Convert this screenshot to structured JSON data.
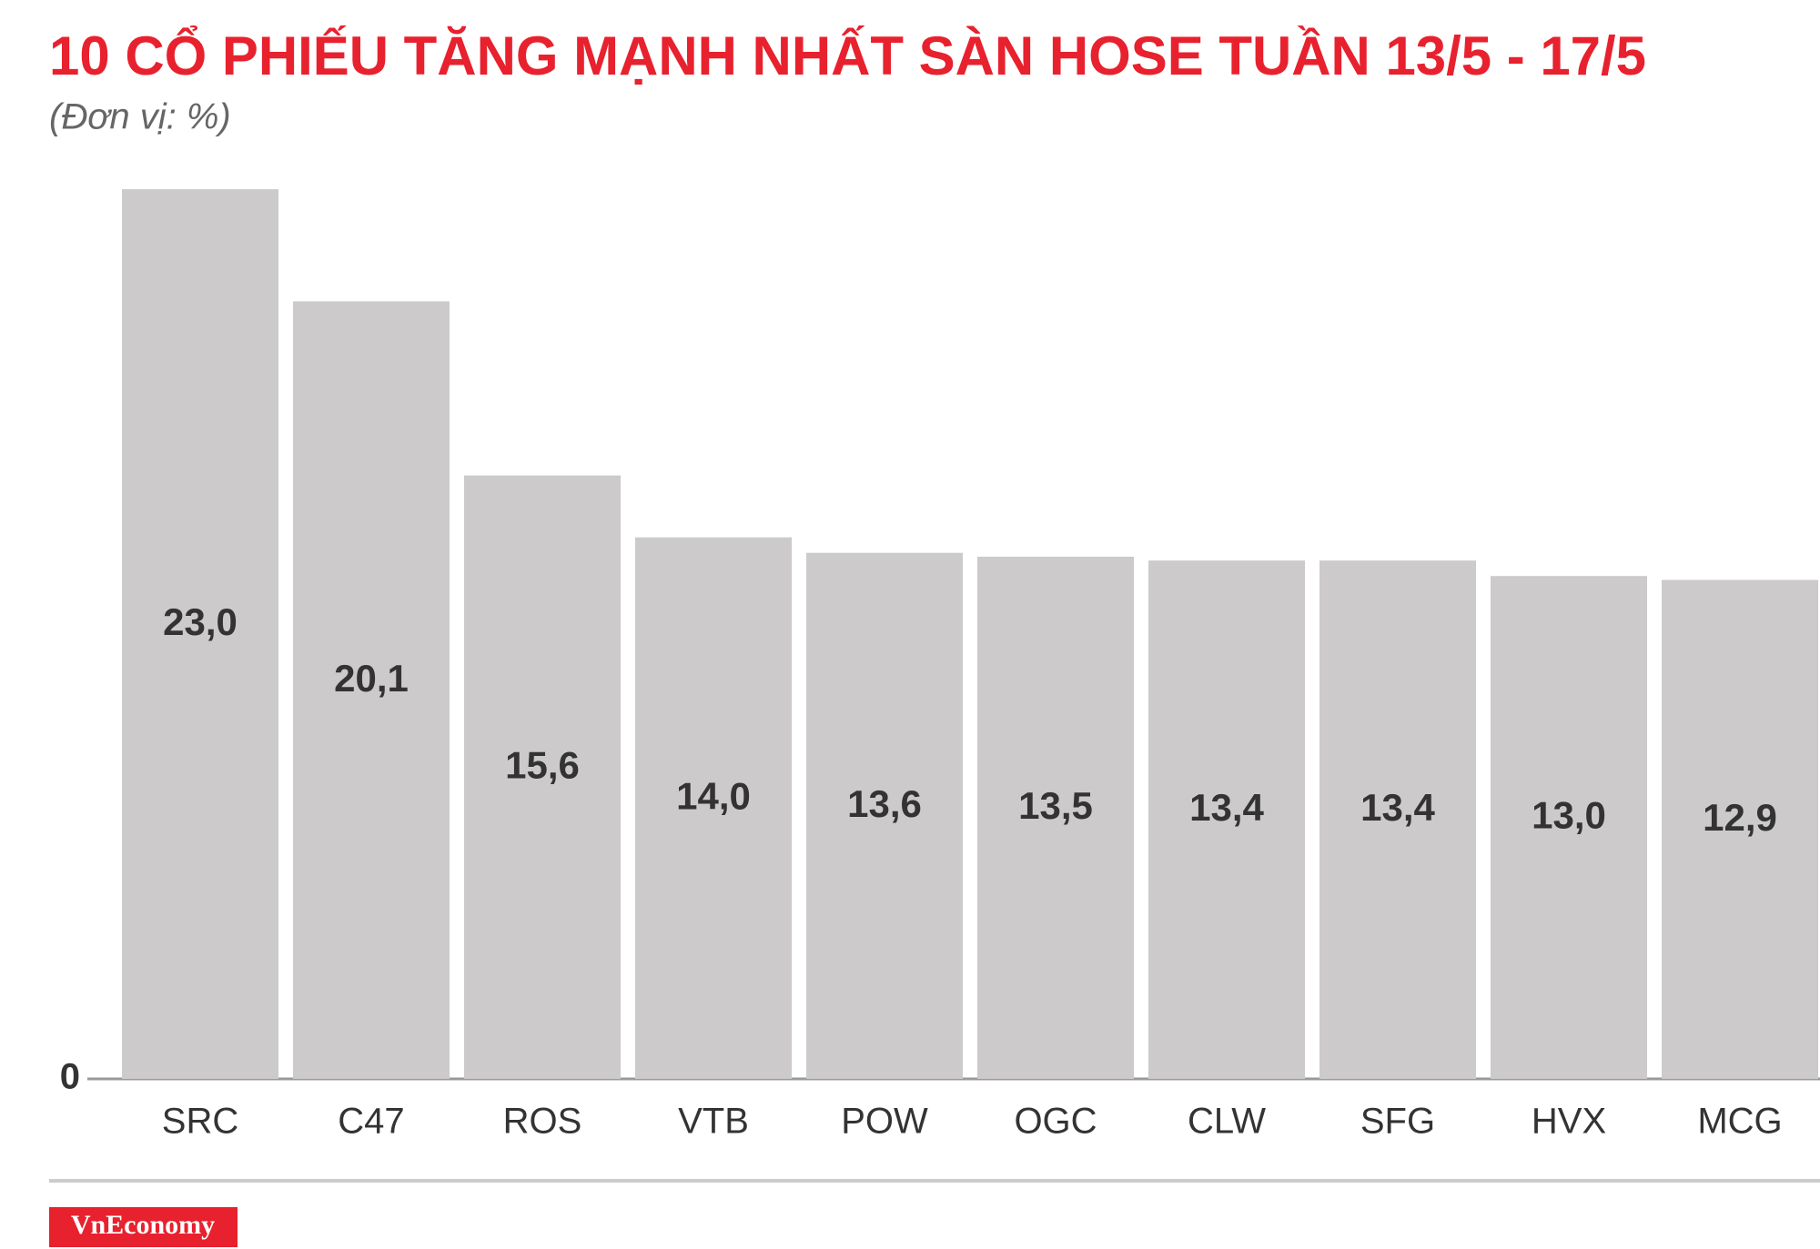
{
  "chart_data": {
    "type": "bar",
    "title": "10 CỔ PHIẾU TĂNG MẠNH NHẤT SÀN HOSE TUẦN 13/5 - 17/5",
    "subtitle": "(Đơn vị: %)",
    "categories": [
      "SRC",
      "C47",
      "ROS",
      "VTB",
      "POW",
      "OGC",
      "CLW",
      "SFG",
      "HVX",
      "MCG"
    ],
    "values": [
      23.0,
      20.1,
      15.6,
      14.0,
      13.6,
      13.5,
      13.4,
      13.4,
      13.0,
      12.9
    ],
    "value_labels": [
      "23,0",
      "20,1",
      "15,6",
      "14,0",
      "13,6",
      "13,5",
      "13,4",
      "13,4",
      "13,0",
      "12,9"
    ],
    "color": "#cccacb",
    "ylim": [
      0,
      23
    ],
    "yticks": [
      0
    ],
    "grid": false,
    "logo": "VnEconomy"
  }
}
